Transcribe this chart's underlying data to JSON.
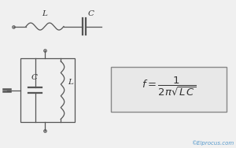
{
  "bg_color": "#f0f0f0",
  "line_color": "#555555",
  "text_color": "#333333",
  "copyright_color": "#5599cc",
  "copyright_text": "©Elprocus.com",
  "label_L_top": "L",
  "label_C_top": "C",
  "label_C_box": "C",
  "label_L_box": "L",
  "figsize": [
    3.0,
    1.88
  ],
  "dpi": 100
}
